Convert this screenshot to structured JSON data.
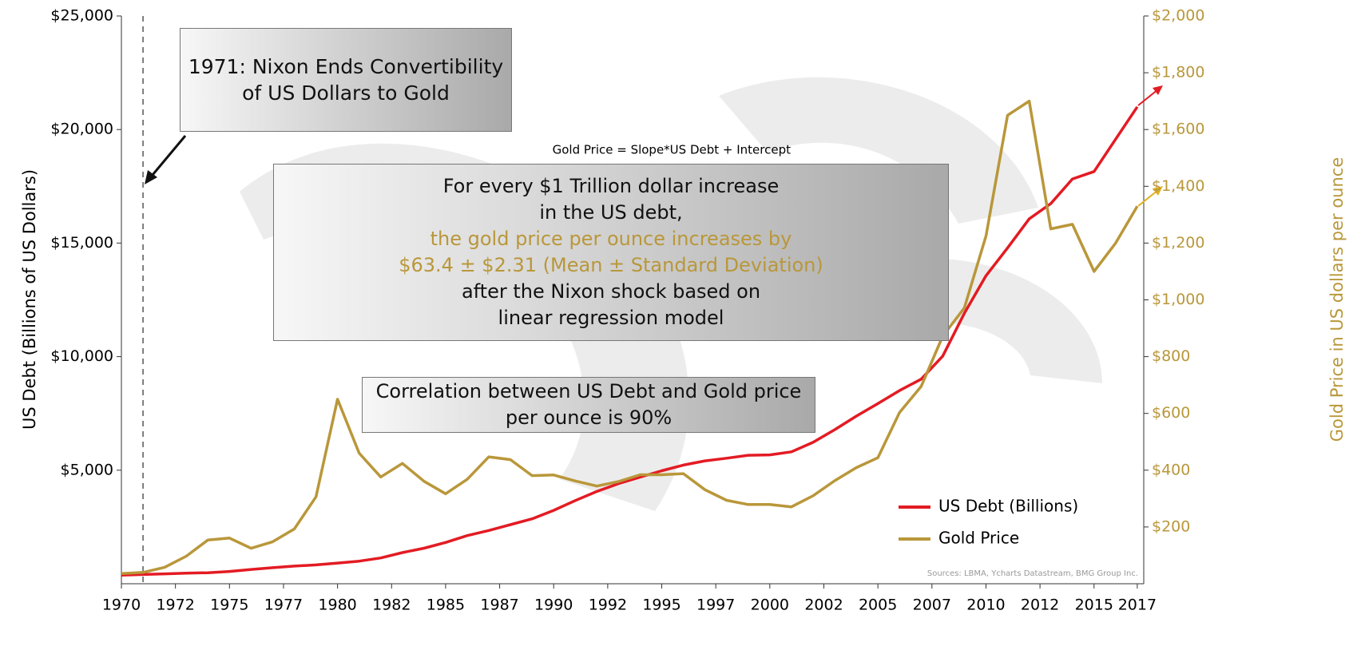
{
  "chart_data": {
    "type": "line",
    "y_label": "US Debt (Billions of US Dollars)",
    "y2_label": "Gold Price in US dollars per ounce",
    "x": [
      1970,
      1971,
      1972,
      1973,
      1974,
      1975,
      1976,
      1977,
      1978,
      1979,
      1980,
      1981,
      1982,
      1983,
      1984,
      1985,
      1986,
      1987,
      1988,
      1989,
      1990,
      1991,
      1992,
      1993,
      1994,
      1995,
      1996,
      1997,
      1998,
      1999,
      2000,
      2001,
      2002,
      2003,
      2004,
      2005,
      2006,
      2007,
      2008,
      2009,
      2010,
      2011,
      2012,
      2013,
      2014,
      2015,
      2016,
      2017
    ],
    "series": [
      {
        "name": "US Debt (Billions)",
        "color": "#e31b23",
        "axis": "y",
        "values": [
          380,
          408,
          436,
          466,
          484,
          542,
          629,
          706,
          776,
          829,
          909,
          995,
          1137,
          1372,
          1565,
          1817,
          2121,
          2346,
          2602,
          2857,
          3233,
          3665,
          4065,
          4411,
          4693,
          4974,
          5225,
          5413,
          5526,
          5656,
          5674,
          5807,
          6228,
          6783,
          7379,
          7933,
          8507,
          9008,
          10025,
          11910,
          13562,
          14790,
          16066,
          16738,
          17824,
          18151,
          19573,
          21000
        ]
      },
      {
        "name": "Gold Price",
        "color": "#b9973a",
        "axis": "y2",
        "values": [
          36,
          40,
          58,
          97,
          154,
          161,
          125,
          148,
          193,
          306,
          650,
          460,
          376,
          424,
          361,
          317,
          368,
          447,
          437,
          381,
          383,
          362,
          344,
          360,
          384,
          384,
          388,
          331,
          294,
          279,
          279,
          271,
          310,
          363,
          409,
          444,
          603,
          695,
          872,
          972,
          1225,
          1650,
          1700,
          1250,
          1266,
          1100,
          1200,
          1330
        ]
      }
    ],
    "xlim": [
      1970,
      2017.3
    ],
    "xticks": [
      1970,
      {
        "value": 1972.5,
        "label": "1972"
      },
      1975,
      {
        "value": 1977.5,
        "label": "1977"
      },
      1980,
      {
        "value": 1982.5,
        "label": "1982"
      },
      1985,
      {
        "value": 1987.5,
        "label": "1987"
      },
      1990,
      {
        "value": 1992.5,
        "label": "1992"
      },
      1995,
      {
        "value": 1997.5,
        "label": "1997"
      },
      2000,
      {
        "value": 2002.5,
        "label": "2002"
      },
      2005,
      {
        "value": 2007.5,
        "label": "2007"
      },
      2010,
      {
        "value": 2012.5,
        "label": "2012"
      },
      2015,
      2017
    ],
    "ylim": [
      0,
      25000
    ],
    "yticks": [
      {
        "value": 5000,
        "label": "$5,000"
      },
      {
        "value": 10000,
        "label": "$10,000"
      },
      {
        "value": 15000,
        "label": "$15,000"
      },
      {
        "value": 20000,
        "label": "$20,000"
      },
      {
        "value": 25000,
        "label": "$25,000"
      }
    ],
    "y2lim": [
      0,
      2000
    ],
    "y2ticks": [
      {
        "value": 200,
        "label": "$200"
      },
      {
        "value": 400,
        "label": "$400"
      },
      {
        "value": 600,
        "label": "$600"
      },
      {
        "value": 800,
        "label": "$800"
      },
      {
        "value": 1000,
        "label": "$1,000"
      },
      {
        "value": 1200,
        "label": "$1,200"
      },
      {
        "value": 1400,
        "label": "$1,400"
      },
      {
        "value": 1600,
        "label": "$1,600"
      },
      {
        "value": 1800,
        "label": "$1,800"
      },
      {
        "value": 2000,
        "label": "$2,000"
      }
    ],
    "reference_line_x": 1971,
    "legend": "lower right",
    "annotations": {
      "nixon": [
        "1971: Nixon Ends Convertibility",
        "of US Dollars to Gold"
      ],
      "formula": "Gold Price = Slope*US Debt + Intercept",
      "regression": [
        "For every $1 Trillion dollar increase",
        "in the US debt,",
        "the gold price per ounce increases by",
        "$63.4 ± $2.31 (Mean ± Standard Deviation)",
        "after the Nixon shock based on",
        "linear regression model"
      ],
      "correlation": [
        "Correlation between US Debt and Gold price",
        "per ounce is 90%"
      ],
      "sources": "Sources: LBMA, Ycharts Datastream, BMG Group Inc."
    }
  }
}
